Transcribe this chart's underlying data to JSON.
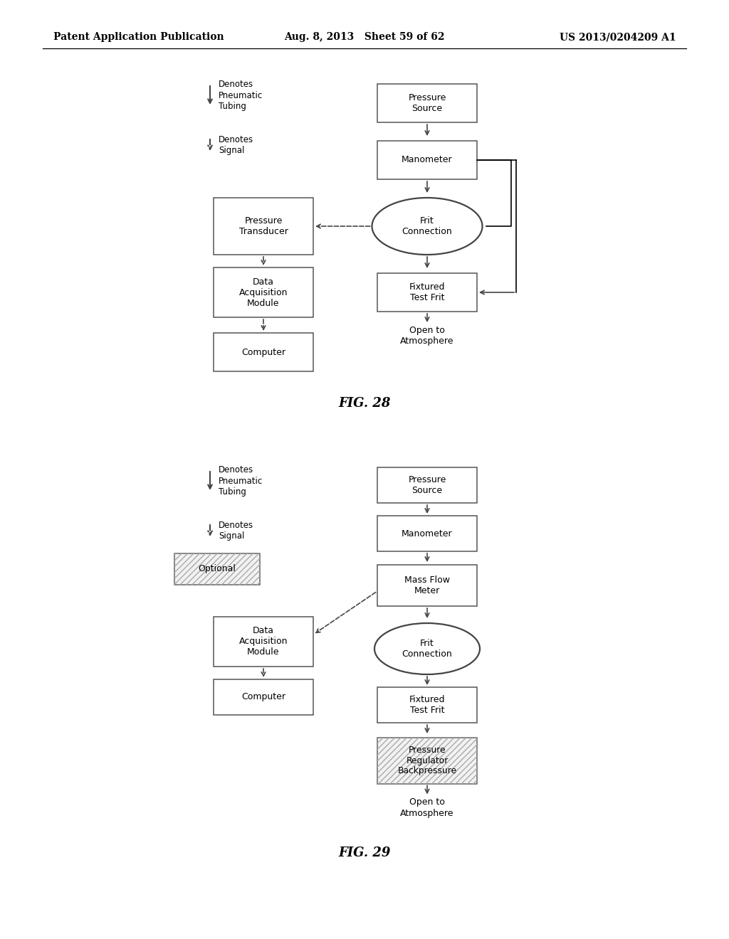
{
  "header": {
    "left": "Patent Application Publication",
    "center": "Aug. 8, 2013   Sheet 59 of 62",
    "right": "US 2013/0204209 A1"
  },
  "colors": {
    "background": "#ffffff",
    "box_edge": "#555555",
    "text": "#222222",
    "arrow": "#444444"
  }
}
